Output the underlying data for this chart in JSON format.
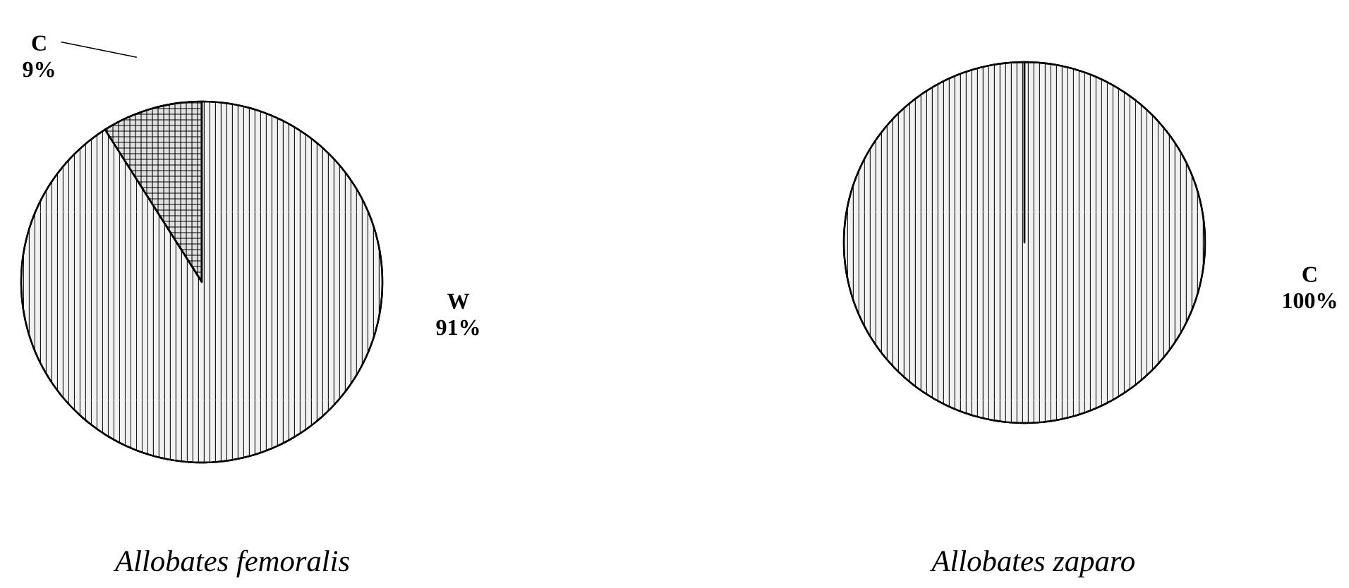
{
  "chart_data": [
    {
      "type": "pie",
      "title": "Allobates femoralis",
      "categories": [
        "W",
        "C"
      ],
      "values": [
        91,
        9
      ],
      "value_labels": [
        "91%",
        "9%"
      ],
      "colors": [
        "#f2f2f2",
        "#e0e0e0"
      ]
    },
    {
      "type": "pie",
      "title": "Allobates zaparo",
      "categories": [
        "C"
      ],
      "values": [
        100
      ],
      "value_labels": [
        "100%"
      ],
      "colors": [
        "#f2f2f2"
      ]
    }
  ]
}
